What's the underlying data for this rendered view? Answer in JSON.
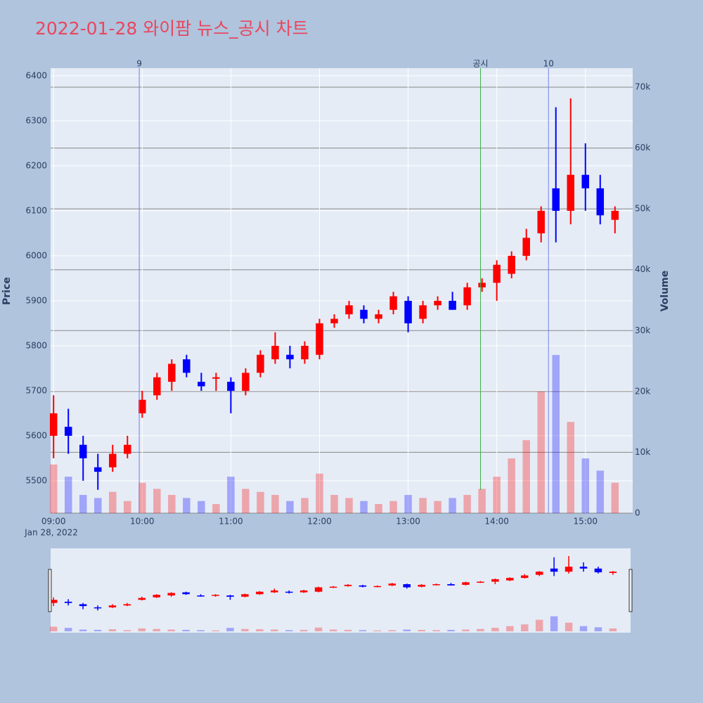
{
  "chart_data": {
    "type": "candlestick",
    "title": "2022-01-28 와이팜 뉴스_공시 차트",
    "y_label": "Price",
    "y2_label": "Volume",
    "x_date_label": "Jan 28, 2022",
    "up_color": "#ff0000",
    "down_color": "#0000ff",
    "x": [
      "09:00",
      "09:10",
      "09:20",
      "09:30",
      "09:40",
      "09:50",
      "10:00",
      "10:10",
      "10:20",
      "10:30",
      "10:40",
      "10:50",
      "11:00",
      "11:10",
      "11:20",
      "11:30",
      "11:40",
      "11:50",
      "12:00",
      "12:10",
      "12:20",
      "12:30",
      "12:40",
      "12:50",
      "13:00",
      "13:10",
      "13:20",
      "13:30",
      "13:40",
      "13:50",
      "14:00",
      "14:10",
      "14:20",
      "14:30",
      "14:40",
      "14:50",
      "15:00",
      "15:10",
      "15:20"
    ],
    "open": [
      5600,
      5620,
      5580,
      5530,
      5530,
      5560,
      5650,
      5690,
      5720,
      5770,
      5720,
      5730,
      5720,
      5700,
      5740,
      5770,
      5780,
      5770,
      5780,
      5850,
      5870,
      5880,
      5860,
      5880,
      5900,
      5860,
      5890,
      5900,
      5890,
      5930,
      5940,
      5960,
      6000,
      6050,
      6150,
      6100,
      6180,
      6150,
      6080
    ],
    "high": [
      5690,
      5660,
      5600,
      5560,
      5580,
      5600,
      5700,
      5740,
      5770,
      5780,
      5740,
      5740,
      5730,
      5750,
      5790,
      5830,
      5800,
      5810,
      5860,
      5870,
      5900,
      5890,
      5880,
      5920,
      5910,
      5900,
      5910,
      5920,
      5940,
      5950,
      5990,
      6010,
      6060,
      6110,
      6330,
      6350,
      6250,
      6180,
      6110
    ],
    "low": [
      5550,
      5560,
      5500,
      5480,
      5520,
      5550,
      5640,
      5680,
      5700,
      5730,
      5700,
      5700,
      5650,
      5690,
      5730,
      5760,
      5750,
      5760,
      5770,
      5840,
      5860,
      5850,
      5850,
      5870,
      5830,
      5850,
      5880,
      5880,
      5880,
      5920,
      5900,
      5950,
      5990,
      6030,
      6030,
      6070,
      6100,
      6070,
      6050
    ],
    "close": [
      5650,
      5600,
      5550,
      5520,
      5560,
      5580,
      5680,
      5730,
      5760,
      5740,
      5710,
      5730,
      5700,
      5740,
      5780,
      5800,
      5770,
      5800,
      5850,
      5860,
      5890,
      5860,
      5870,
      5910,
      5850,
      5890,
      5900,
      5880,
      5930,
      5940,
      5980,
      6000,
      6040,
      6100,
      6100,
      6180,
      6150,
      6090,
      6100
    ],
    "volume": [
      8000,
      6000,
      3000,
      2500,
      3500,
      2000,
      5000,
      4000,
      3000,
      2500,
      2000,
      1500,
      6000,
      4000,
      3500,
      3000,
      2000,
      2500,
      6500,
      3000,
      2500,
      2000,
      1500,
      2000,
      3000,
      2500,
      2000,
      2500,
      3000,
      4000,
      6000,
      9000,
      12000,
      20000,
      26000,
      15000,
      9000,
      7000,
      5000
    ],
    "xlim": [
      "08:58",
      "15:32"
    ],
    "xticks": [
      "09:00",
      "10:00",
      "11:00",
      "12:00",
      "13:00",
      "14:00",
      "15:00"
    ],
    "ylim": [
      5428,
      6417
    ],
    "yticks": [
      5500,
      5600,
      5700,
      5800,
      5900,
      6000,
      6100,
      6200,
      6300,
      6400
    ],
    "y2lim": [
      0,
      73125
    ],
    "y2ticks": [
      0,
      {
        "value": 10000,
        "label": "10k"
      },
      {
        "value": 20000,
        "label": "20k"
      },
      {
        "value": 30000,
        "label": "30k"
      },
      {
        "value": 40000,
        "label": "40k"
      },
      {
        "value": 50000,
        "label": "50k"
      },
      {
        "value": 60000,
        "label": "60k"
      },
      {
        "value": 70000,
        "label": "70k"
      }
    ],
    "grid": true,
    "vlines": [
      {
        "x": "09:58",
        "label": "9",
        "color": "#7080f0"
      },
      {
        "x": "13:49",
        "label": "공시",
        "color": "#3cb043"
      },
      {
        "x": "14:35",
        "label": "10",
        "color": "#7080f0"
      }
    ]
  }
}
